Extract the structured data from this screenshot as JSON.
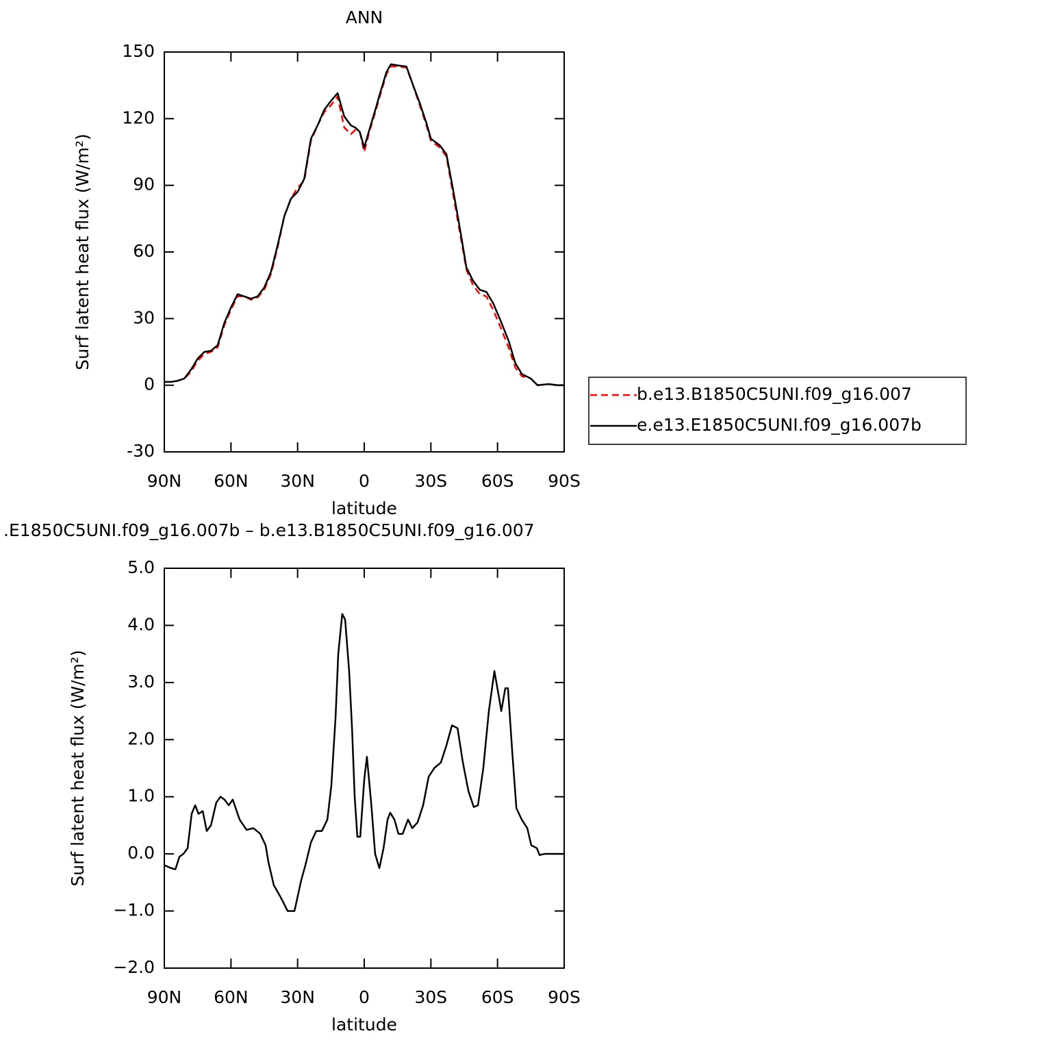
{
  "chart_data": [
    {
      "type": "line",
      "title": "ANN",
      "xlabel": "latitude",
      "ylabel": "Surf latent heat flux (W/m²)",
      "xlim": [
        90,
        -90
      ],
      "xticks": [
        {
          "value": 90,
          "label": "90N"
        },
        {
          "value": 60,
          "label": "60N"
        },
        {
          "value": 30,
          "label": "30N"
        },
        0,
        {
          "value": -30,
          "label": "30S"
        },
        {
          "value": -60,
          "label": "60S"
        },
        {
          "value": -90,
          "label": "90S"
        }
      ],
      "ylim": [
        -30,
        150
      ],
      "yticks": [
        -30,
        0,
        30,
        60,
        90,
        120,
        150
      ],
      "legend": "right",
      "x": [
        90,
        87,
        84,
        81,
        78,
        75,
        72,
        69,
        66,
        63,
        60,
        57,
        54,
        51,
        48,
        45,
        42,
        39,
        36,
        33,
        30,
        27,
        24,
        21,
        18,
        15,
        12,
        9,
        6,
        4,
        2,
        0,
        -2,
        -5,
        -7,
        -10,
        -12,
        -15,
        -19,
        -22,
        -25,
        -28,
        -30,
        -34,
        -37,
        -40,
        -43,
        -46,
        -49,
        -52,
        -55,
        -58,
        -61,
        -65,
        -68,
        -71,
        -75,
        -78,
        -83,
        -87,
        -90
      ],
      "series": [
        {
          "name": "b.e13.B1850C5UNI.f09_g16.007",
          "color": "#ff0000",
          "dash": true,
          "values": [
            1.5,
            1.5,
            2,
            3,
            6,
            11,
            14,
            15,
            17,
            27,
            34,
            40,
            40,
            38.5,
            39.5,
            43,
            50,
            62,
            76,
            84,
            89,
            92,
            110,
            117,
            123,
            126,
            130,
            116,
            113,
            115,
            114,
            105,
            113,
            123,
            130,
            140,
            143.5,
            143.5,
            143,
            135,
            126,
            117,
            110,
            107,
            103,
            86,
            69,
            52,
            45,
            41,
            40,
            34,
            27,
            17,
            8,
            4,
            3,
            0,
            0.5,
            0,
            0
          ]
        },
        {
          "name": "e.e13.E1850C5UNI.f09_g16.007b",
          "color": "#000000",
          "dash": false,
          "values": [
            1.5,
            1.5,
            2,
            3,
            7,
            12,
            15,
            15.5,
            18,
            28,
            35,
            41,
            40,
            39,
            40,
            44,
            51,
            63,
            76,
            84,
            87,
            93,
            111,
            117,
            124,
            128,
            131.5,
            121,
            117,
            116,
            114,
            107,
            114,
            124,
            131,
            141,
            144.5,
            144,
            143.5,
            135,
            127,
            118,
            111,
            108,
            104,
            88,
            71,
            53,
            47,
            43,
            42,
            37,
            30,
            20,
            10,
            5,
            3,
            0,
            0.5,
            0,
            0
          ]
        }
      ]
    },
    {
      "type": "line",
      "title": ".E1850C5UNI.f09_g16.007b – b.e13.B1850C5UNI.f09_g16.007",
      "xlabel": "latitude",
      "ylabel": "Surf latent heat flux (W/m²)",
      "xlim": [
        90,
        -90
      ],
      "xticks": [
        {
          "value": 90,
          "label": "90N"
        },
        {
          "value": 60,
          "label": "60N"
        },
        {
          "value": 30,
          "label": "30N"
        },
        0,
        {
          "value": -30,
          "label": "30S"
        },
        {
          "value": -60,
          "label": "60S"
        },
        {
          "value": -90,
          "label": "90S"
        }
      ],
      "ylim": [
        -2,
        5
      ],
      "yticks": [
        {
          "value": -2,
          "label": "−2.0"
        },
        {
          "value": -1,
          "label": "−1.0"
        },
        {
          "value": 0,
          "label": "0.0"
        },
        {
          "value": 1,
          "label": "1.0"
        },
        {
          "value": 2,
          "label": "2.0"
        },
        {
          "value": 3,
          "label": "3.0"
        },
        {
          "value": 4,
          "label": "4.0"
        },
        {
          "value": 5,
          "label": "5.0"
        }
      ],
      "x": [
        90,
        86.9,
        85,
        83.2,
        81.4,
        79.5,
        77.7,
        76.1,
        74.6,
        72.7,
        70.9,
        69,
        66.6,
        64.7,
        62.9,
        61,
        59.2,
        56.1,
        53,
        49.9,
        46.8,
        44.4,
        43.1,
        40.7,
        38.2,
        36.4,
        34.5,
        31.4,
        28.3,
        26.5,
        24,
        21.6,
        19.1,
        16.6,
        14.8,
        12.9,
        11.7,
        9.9,
        8.6,
        6.8,
        5.5,
        4.3,
        3.1,
        1.8,
        0,
        -1.2,
        -3.1,
        -4.9,
        -6.8,
        -8.7,
        -10.5,
        -11.7,
        -13.6,
        -15.4,
        -17.3,
        -19.7,
        -21.6,
        -24,
        -26.5,
        -29,
        -31.5,
        -34.5,
        -37,
        -39.5,
        -42,
        -44.4,
        -46.9,
        -49.3,
        -51.2,
        -53.6,
        -56.1,
        -58.6,
        -60.4,
        -61.7,
        -63.5,
        -64.7,
        -66.6,
        -68.5,
        -70.9,
        -73.4,
        -75.2,
        -77.7,
        -78.9,
        -81.4,
        -85.7,
        -90
      ],
      "series": [
        {
          "color": "#000000",
          "dash": false,
          "values": [
            -0.2,
            -0.25,
            -0.27,
            -0.05,
            0,
            0.1,
            0.7,
            0.85,
            0.7,
            0.75,
            0.4,
            0.5,
            0.9,
            1.0,
            0.95,
            0.85,
            0.95,
            0.6,
            0.42,
            0.45,
            0.35,
            0.15,
            -0.15,
            -0.55,
            -0.72,
            -0.85,
            -1.0,
            -1.0,
            -0.45,
            -0.2,
            0.2,
            0.4,
            0.4,
            0.6,
            1.2,
            2.4,
            3.5,
            4.2,
            4.1,
            3.2,
            2.2,
            1.0,
            0.3,
            0.3,
            1.3,
            1.7,
            0.9,
            0,
            -0.25,
            0.1,
            0.6,
            0.72,
            0.6,
            0.35,
            0.35,
            0.6,
            0.45,
            0.55,
            0.85,
            1.35,
            1.5,
            1.6,
            1.9,
            2.25,
            2.2,
            1.6,
            1.1,
            0.82,
            0.85,
            1.5,
            2.5,
            3.2,
            2.8,
            2.5,
            2.9,
            2.9,
            1.8,
            0.8,
            0.6,
            0.45,
            0.15,
            0.1,
            -0.02,
            0,
            0,
            0
          ]
        }
      ]
    }
  ]
}
